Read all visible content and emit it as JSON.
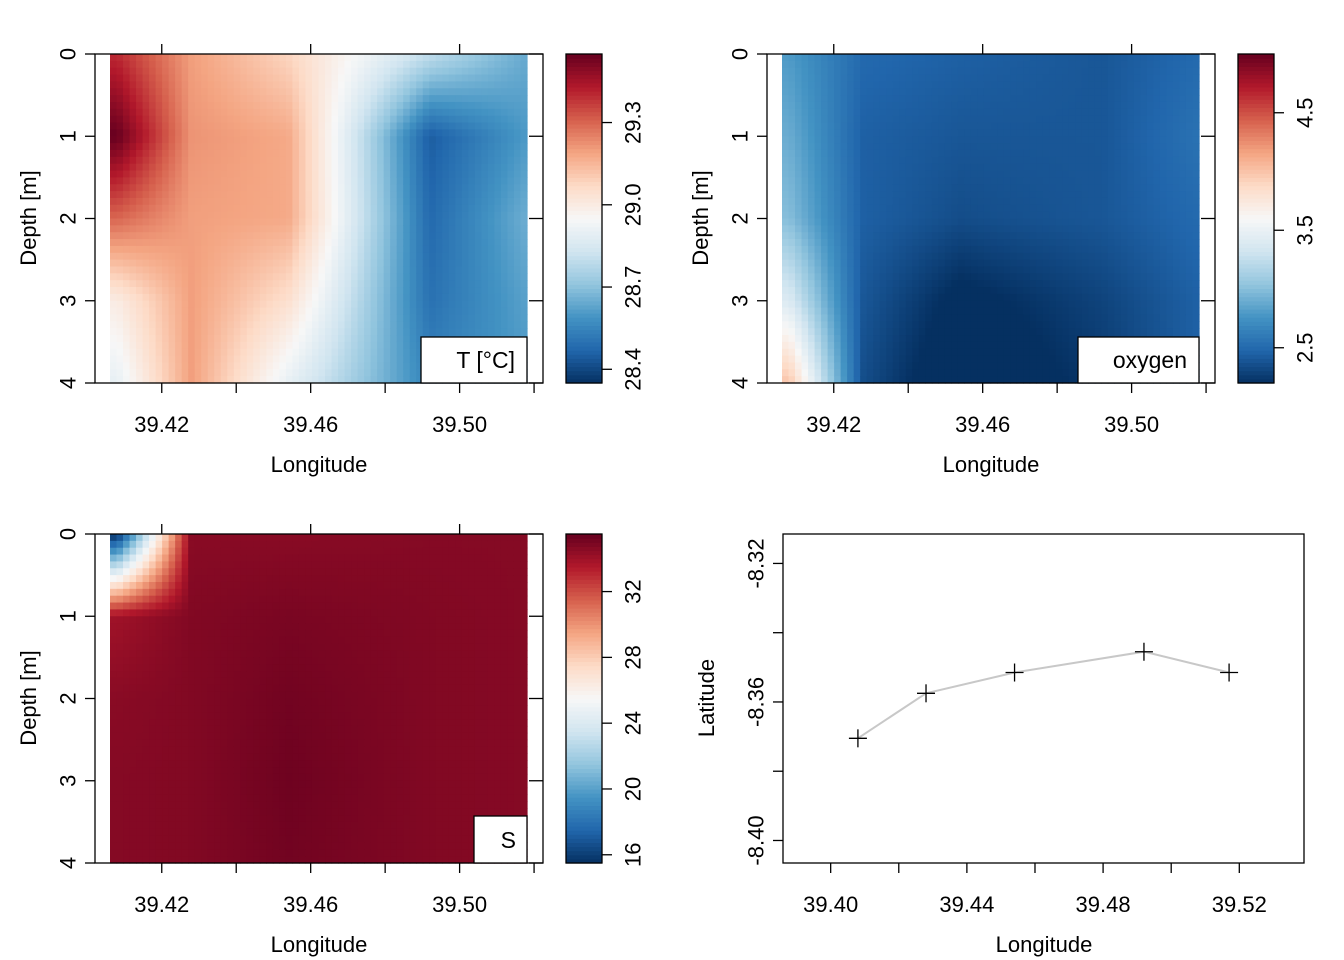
{
  "chart_data": [
    {
      "type": "heatmap",
      "title": "",
      "xlabel": "Longitude",
      "ylabel": "Depth [m]",
      "legend_label": "T [°C]",
      "x_ticks": [
        "39.42",
        "39.46",
        "39.50"
      ],
      "y_ticks": [
        "0",
        "1",
        "2",
        "3",
        "4"
      ],
      "colorbar_ticks": [
        "28.4",
        "28.7",
        "29.0",
        "29.3"
      ],
      "colorbar_range": [
        28.35,
        29.55
      ],
      "x": [
        39.408,
        39.428,
        39.454,
        39.492,
        39.517
      ],
      "depth": [
        0,
        1,
        2,
        3,
        4
      ],
      "values": [
        [
          29.4,
          29.2,
          29.08,
          28.8,
          28.65
        ],
        [
          29.55,
          29.22,
          29.18,
          28.45,
          28.6
        ],
        [
          29.3,
          29.2,
          29.18,
          28.48,
          28.65
        ],
        [
          29.0,
          29.2,
          29.05,
          28.5,
          28.62
        ],
        [
          28.9,
          29.2,
          28.9,
          28.55,
          28.6
        ]
      ]
    },
    {
      "type": "heatmap",
      "title": "",
      "xlabel": "Longitude",
      "ylabel": "Depth [m]",
      "legend_label": "oxygen",
      "x_ticks": [
        "39.42",
        "39.46",
        "39.50"
      ],
      "y_ticks": [
        "0",
        "1",
        "2",
        "3",
        "4"
      ],
      "colorbar_ticks": [
        "2.5",
        "3.5",
        "4.5"
      ],
      "colorbar_range": [
        2.2,
        5.0
      ],
      "x": [
        39.408,
        39.428,
        39.454,
        39.492,
        39.517
      ],
      "depth": [
        0,
        1,
        2,
        3,
        4
      ],
      "values": [
        [
          2.8,
          2.5,
          2.45,
          2.4,
          2.5
        ],
        [
          2.9,
          2.45,
          2.4,
          2.4,
          2.55
        ],
        [
          3.0,
          2.45,
          2.35,
          2.4,
          2.5
        ],
        [
          3.4,
          2.4,
          2.15,
          2.3,
          2.45
        ],
        [
          4.0,
          2.35,
          2.05,
          2.25,
          2.45
        ]
      ]
    },
    {
      "type": "heatmap",
      "title": "",
      "xlabel": "Longitude",
      "ylabel": "Depth [m]",
      "legend_label": "S",
      "x_ticks": [
        "39.42",
        "39.46",
        "39.50"
      ],
      "y_ticks": [
        "0",
        "1",
        "2",
        "3",
        "4"
      ],
      "colorbar_ticks": [
        "16",
        "20",
        "24",
        "28",
        "32"
      ],
      "colorbar_range": [
        15.5,
        35.5
      ],
      "x": [
        39.408,
        39.428,
        39.454,
        39.492,
        39.517
      ],
      "depth": [
        0,
        1,
        2,
        3,
        4
      ],
      "values": [
        [
          15.5,
          34.6,
          34.6,
          34.7,
          34.7
        ],
        [
          34.0,
          34.8,
          35.0,
          34.8,
          34.7
        ],
        [
          34.6,
          34.8,
          35.2,
          34.8,
          34.7
        ],
        [
          34.7,
          34.8,
          35.3,
          34.8,
          34.7
        ],
        [
          34.7,
          34.8,
          35.2,
          34.8,
          34.7
        ]
      ]
    },
    {
      "type": "line",
      "title": "",
      "xlabel": "Longitude",
      "ylabel": "Latitude",
      "x_ticks": [
        "39.40",
        "39.44",
        "39.48",
        "39.52"
      ],
      "y_ticks": [
        "-8.32",
        "-8.36",
        "-8.40"
      ],
      "xlim": [
        39.386,
        39.539
      ],
      "ylim": [
        -8.4065,
        -8.3115
      ],
      "x": [
        39.408,
        39.428,
        39.454,
        39.492,
        39.517
      ],
      "y": [
        -8.3705,
        -8.3575,
        -8.3515,
        -8.3455,
        -8.3515
      ]
    }
  ],
  "colors": {
    "diverging": [
      "#053061",
      "#2166ac",
      "#4393c3",
      "#92c5de",
      "#d1e5f0",
      "#f7f7f7",
      "#fddbc7",
      "#f4a582",
      "#d6604d",
      "#b2182b",
      "#67001f"
    ],
    "track_line": "#c8c8c8"
  }
}
